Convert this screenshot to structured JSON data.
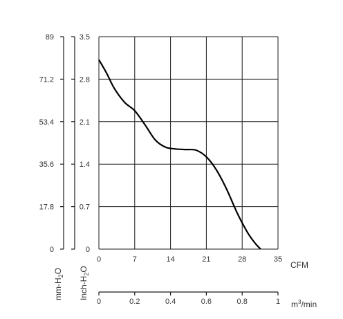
{
  "chart_data": {
    "type": "line",
    "x_axis": {
      "unit": "CFM",
      "ticks": [
        "0",
        "7",
        "14",
        "21",
        "28",
        "35"
      ],
      "range": [
        0,
        35
      ]
    },
    "x_axis_secondary": {
      "unit_base": "m",
      "unit_sup": "3",
      "unit_rest": "/min",
      "ticks": [
        "0",
        "0.2",
        "0.4",
        "0.6",
        "0.8",
        "1"
      ],
      "range": [
        0,
        1
      ]
    },
    "y_axis_inch": {
      "label_parts": [
        "Inch-H",
        "2",
        "O"
      ],
      "ticks": [
        "0",
        "0.7",
        "1.4",
        "2.1",
        "2.8",
        "3.5"
      ],
      "range": [
        0,
        3.5
      ]
    },
    "y_axis_mm": {
      "label_parts": [
        "mm-H",
        "2",
        "O"
      ],
      "ticks": [
        "0",
        "17.8",
        "35.6",
        "53.4",
        "71.2",
        "89"
      ],
      "range": [
        0,
        89
      ]
    },
    "grid": true,
    "series": [
      {
        "x": [
          0,
          1.5,
          3,
          5,
          7,
          9,
          11,
          13,
          15,
          17,
          19,
          21,
          23,
          25,
          27,
          29,
          30.5,
          31.6
        ],
        "y": [
          3.12,
          2.9,
          2.65,
          2.42,
          2.28,
          2.05,
          1.8,
          1.68,
          1.65,
          1.64,
          1.63,
          1.52,
          1.3,
          0.98,
          0.6,
          0.28,
          0.1,
          0
        ]
      }
    ]
  }
}
